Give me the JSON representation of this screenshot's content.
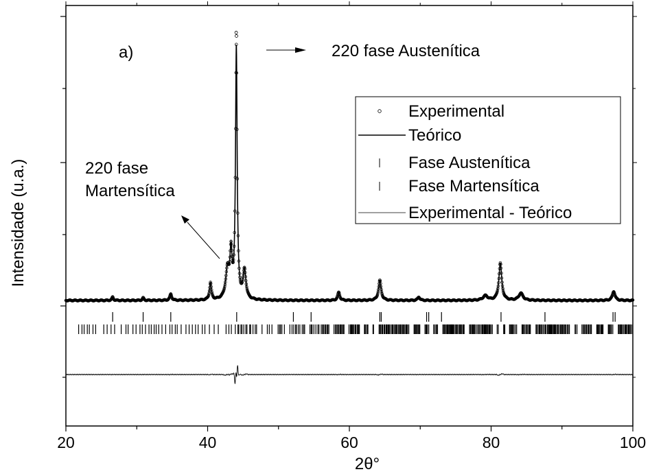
{
  "chart_data": {
    "type": "line",
    "panel_label": "a)",
    "xlabel": "2θ°",
    "ylabel": "Intensidade (u.a.)",
    "xlim": [
      20,
      100
    ],
    "xticks": [
      20,
      40,
      60,
      80,
      100
    ],
    "grid": false,
    "legend_position": "right",
    "annotations": [
      {
        "id": "austenitic",
        "text": "220 fase Austenítica"
      },
      {
        "id": "martensitic",
        "lines": [
          "220 fase",
          "Martensítica"
        ]
      }
    ],
    "series": [
      {
        "name": "Experimental",
        "style": "open-circles"
      },
      {
        "name": "Teórico",
        "style": "line"
      },
      {
        "name": "Fase Austenítica",
        "style": "tick-marks",
        "positions": [
          26.6,
          30.9,
          34.8,
          44.1,
          52.1,
          54.6,
          64.3,
          64.5,
          70.9,
          71.2,
          73.0,
          81.4,
          87.6,
          97.2,
          97.5
        ]
      },
      {
        "name": "Fase Martensítica",
        "style": "tick-marks-dense"
      },
      {
        "name": "Experimental - Teórico",
        "style": "thin-line"
      }
    ],
    "peaks": [
      {
        "x": 26.6,
        "height": 0.012,
        "width": 0.12
      },
      {
        "x": 30.9,
        "height": 0.009,
        "width": 0.12
      },
      {
        "x": 34.8,
        "height": 0.022,
        "width": 0.16
      },
      {
        "x": 40.4,
        "height": 0.06,
        "width": 0.16
      },
      {
        "x": 42.8,
        "height": 0.1,
        "width": 0.3
      },
      {
        "x": 43.3,
        "height": 0.15,
        "width": 0.18
      },
      {
        "x": 44.05,
        "height": 0.88,
        "width": 0.14
      },
      {
        "x": 45.2,
        "height": 0.1,
        "width": 0.24
      },
      {
        "x": 58.5,
        "height": 0.028,
        "width": 0.18
      },
      {
        "x": 64.3,
        "height": 0.07,
        "width": 0.22
      },
      {
        "x": 69.8,
        "height": 0.012,
        "width": 0.18
      },
      {
        "x": 79.2,
        "height": 0.016,
        "width": 0.4
      },
      {
        "x": 81.3,
        "height": 0.13,
        "width": 0.24
      },
      {
        "x": 84.2,
        "height": 0.025,
        "width": 0.35
      },
      {
        "x": 97.3,
        "height": 0.032,
        "width": 0.22
      }
    ]
  }
}
